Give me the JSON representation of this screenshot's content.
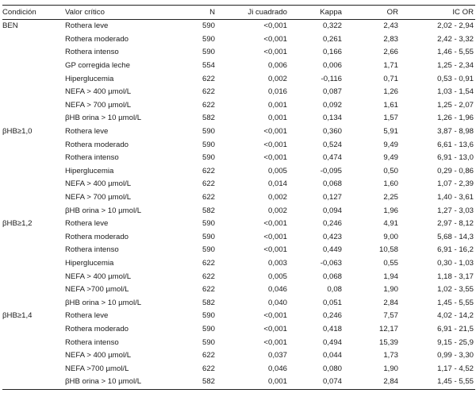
{
  "table": {
    "headers": [
      "Condición",
      "Valor crítico",
      "N",
      "Ji cuadrado",
      "Kappa",
      "OR",
      "IC OR"
    ],
    "rows": [
      [
        "BEN",
        "Rothera leve",
        "590",
        "<0,001",
        "0,322",
        "2,43",
        "2,02 - 2,94"
      ],
      [
        "",
        "Rothera moderado",
        "590",
        "<0,001",
        "0,261",
        "2,83",
        "2,42 - 3,32"
      ],
      [
        "",
        "Rothera intenso",
        "590",
        "<0,001",
        "0,166",
        "2,66",
        "1,46 - 5,55"
      ],
      [
        "",
        "GP corregida leche",
        "554",
        "0,006",
        "0,006",
        "1,71",
        "1,25 - 2,34"
      ],
      [
        "",
        "Hiperglucemia",
        "622",
        "0,002",
        "-0,116",
        "0,71",
        "0,53 - 0,91"
      ],
      [
        "",
        "NEFA > 400 µmol/L",
        "622",
        "0,016",
        "0,087",
        "1,26",
        "1,03 - 1,54"
      ],
      [
        "",
        "NEFA > 700 µmol/L",
        "622",
        "0,001",
        "0,092",
        "1,61",
        "1,25 - 2,07"
      ],
      [
        "",
        "βHB orina > 10 µmol/L",
        "582",
        "0,001",
        "0,134",
        "1,57",
        "1,26 - 1,96"
      ],
      [
        "βHB≥1,0",
        "Rothera leve",
        "590",
        "<0,001",
        "0,360",
        "5,91",
        "3,87 - 8,98"
      ],
      [
        "",
        "Rothera moderado",
        "590",
        "<0,001",
        "0,524",
        "9,49",
        "6,61 - 13,6"
      ],
      [
        "",
        "Rothera intenso",
        "590",
        "<0,001",
        "0,474",
        "9,49",
        "6,91 - 13,0"
      ],
      [
        "",
        "Hiperglucemia",
        "622",
        "0,005",
        "-0,095",
        "0,50",
        "0,29 - 0,86"
      ],
      [
        "",
        "NEFA > 400 µmol/L",
        "622",
        "0,014",
        "0,068",
        "1,60",
        "1,07 - 2,39"
      ],
      [
        "",
        "NEFA > 700 µmol/L",
        "622",
        "0,002",
        "0,127",
        "2,25",
        "1,40 - 3,61"
      ],
      [
        "",
        "βHB orina > 10 µmol/L",
        "582",
        "0,002",
        "0,094",
        "1,96",
        "1,27 - 3,03"
      ],
      [
        "βHB≥1,2",
        "Rothera leve",
        "590",
        "<0,001",
        "0,246",
        "4,91",
        "2,97 - 8,12"
      ],
      [
        "",
        "Rothera moderado",
        "590",
        "<0,001",
        "0,423",
        "9,00",
        "5,68 - 14,3"
      ],
      [
        "",
        "Rothera intenso",
        "590",
        "<0,001",
        "0,449",
        "10,58",
        "6,91 - 16,2"
      ],
      [
        "",
        "Hiperglucemia",
        "622",
        "0,003",
        "-0,063",
        "0,55",
        "0,30 - 1,03"
      ],
      [
        "",
        "NEFA > 400 µmol/L",
        "622",
        "0,005",
        "0,068",
        "1,94",
        "1,18 - 3,17"
      ],
      [
        "",
        "NEFA >700 µmol/L",
        "622",
        "0,046",
        "0,08",
        "1,90",
        "1,02 - 3,55"
      ],
      [
        "",
        "βHB orina > 10 µmol/L",
        "582",
        "0,040",
        "0,051",
        "2,84",
        "1,45 - 5,55"
      ],
      [
        "βHB≥1,4",
        "Rothera leve",
        "590",
        "<0,001",
        "0,246",
        "7,57",
        "4,02 - 14,2"
      ],
      [
        "",
        "Rothera moderado",
        "590",
        "<0,001",
        "0,418",
        "12,17",
        "6,91 - 21,5"
      ],
      [
        "",
        "Rothera intenso",
        "590",
        "<0,001",
        "0,494",
        "15,39",
        "9,15 - 25,9"
      ],
      [
        "",
        "NEFA > 400 µmol/L",
        "622",
        "0,037",
        "0,044",
        "1,73",
        "0,99 - 3,30"
      ],
      [
        "",
        "NEFA >700 µmol/L",
        "622",
        "0,046",
        "0,080",
        "1,90",
        "1,17 - 4,52"
      ],
      [
        "",
        "βHB orina > 10 µmol/L",
        "582",
        "0,001",
        "0,074",
        "2,84",
        "1,45 - 5,55"
      ]
    ]
  }
}
